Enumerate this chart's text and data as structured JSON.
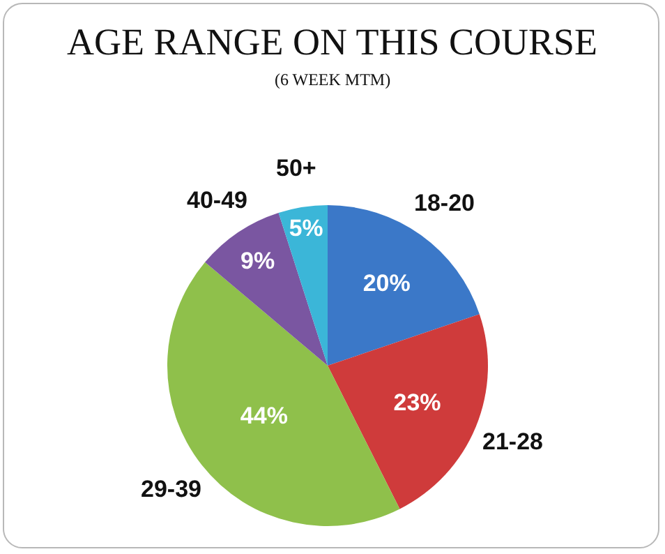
{
  "chart_data": {
    "type": "pie",
    "title": "AGE RANGE ON THIS COURSE",
    "subtitle": "(6 WEEK MTM)",
    "categories": [
      "18-20",
      "21-28",
      "29-39",
      "40-49",
      "50+"
    ],
    "values": [
      20,
      23,
      44,
      9,
      5
    ],
    "value_labels": [
      "20%",
      "23%",
      "44%",
      "9%",
      "5%"
    ],
    "colors": [
      "#3b78c8",
      "#cf3b3b",
      "#8fc04b",
      "#7a56a1",
      "#3bb6d8"
    ],
    "legend": false
  }
}
